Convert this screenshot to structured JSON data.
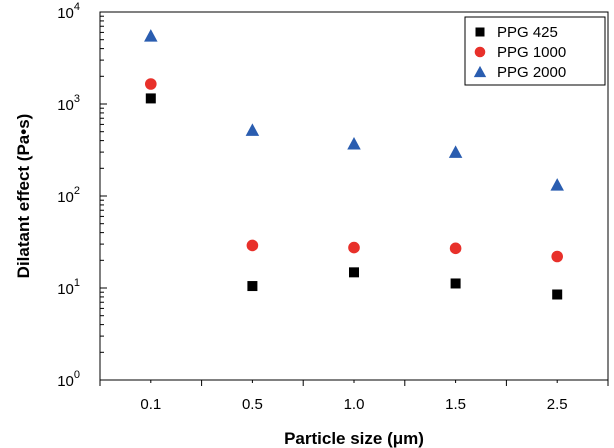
{
  "chart_data": {
    "type": "scatter",
    "title": "",
    "xlabel": "Particle size (μm)",
    "ylabel": "Dilatant effect (Pa•s)",
    "categories": [
      "0.1",
      "0.5",
      "1.0",
      "1.5",
      "2.5"
    ],
    "yscale": "log",
    "ylim": [
      1,
      10000
    ],
    "y_ticks": [
      {
        "value": 1,
        "base": "10",
        "exp": "0"
      },
      {
        "value": 10,
        "base": "10",
        "exp": "1"
      },
      {
        "value": 100,
        "base": "10",
        "exp": "2"
      },
      {
        "value": 1000,
        "base": "10",
        "exp": "3"
      },
      {
        "value": 10000,
        "base": "10",
        "exp": "4"
      }
    ],
    "grid": false,
    "legend_position": "top-right",
    "series": [
      {
        "name": "PPG 425",
        "marker": "square",
        "color": "#000000",
        "values": [
          1150,
          10.5,
          14.8,
          11.2,
          8.5
        ]
      },
      {
        "name": "PPG 1000",
        "marker": "circle",
        "color": "#e8302a",
        "values": [
          1650,
          29,
          27.5,
          27,
          22
        ]
      },
      {
        "name": "PPG 2000",
        "marker": "triangle",
        "color": "#2a5db0",
        "values": [
          5500,
          520,
          370,
          300,
          132
        ]
      }
    ]
  }
}
